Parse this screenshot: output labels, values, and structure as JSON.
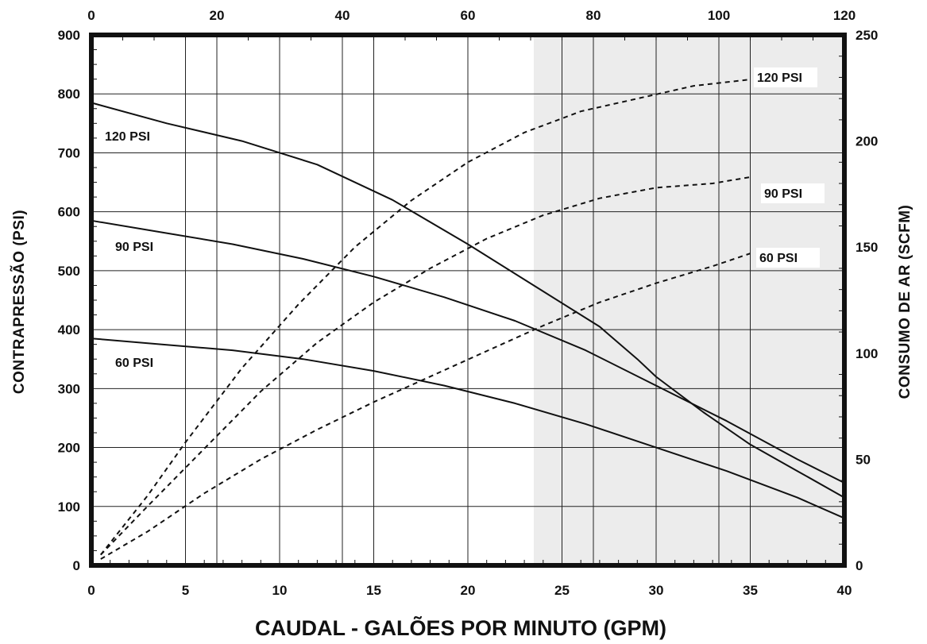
{
  "chart_data": {
    "type": "line",
    "xlabel": "CAUDAL - GALÕES POR MINUTO (GPM)",
    "ylabel": "CONTRAPRESSÃO  (PSI)",
    "y2label": "CONSUMO DE AR  (SCFM)",
    "x_bottom": {
      "lim": [
        0,
        40
      ],
      "ticks": [
        0,
        5,
        10,
        15,
        20,
        25,
        30,
        35,
        40
      ]
    },
    "x_top": {
      "lim": [
        0,
        120
      ],
      "ticks": [
        0,
        20,
        40,
        60,
        80,
        100,
        120
      ]
    },
    "y_left": {
      "lim": [
        0,
        900
      ],
      "ticks": [
        0,
        100,
        200,
        300,
        400,
        500,
        600,
        700,
        800,
        900
      ]
    },
    "y_right": {
      "lim": [
        0,
        250
      ],
      "ticks": [
        0,
        50,
        100,
        150,
        200,
        250
      ]
    },
    "grid": true,
    "shaded_region": {
      "x_from": 23.5,
      "x_to": 40,
      "color": "#ececec"
    },
    "series": [
      {
        "name": "120 PSI",
        "style": "solid",
        "axis": "left",
        "x": [
          0,
          4,
          8,
          12,
          16,
          20,
          24,
          27,
          29,
          30,
          32.5,
          35,
          37.5,
          40
        ],
        "y": [
          785,
          750,
          720,
          680,
          620,
          545,
          465,
          405,
          350,
          320,
          260,
          205,
          160,
          115
        ]
      },
      {
        "name": "90 PSI",
        "style": "solid",
        "axis": "left",
        "x": [
          0,
          3.75,
          7.5,
          11.25,
          15,
          18.75,
          22.5,
          26.25,
          30,
          33.75,
          37.5,
          40
        ],
        "y": [
          585,
          565,
          545,
          520,
          490,
          455,
          415,
          365,
          305,
          245,
          180,
          140
        ]
      },
      {
        "name": "60 PSI",
        "style": "solid",
        "axis": "left",
        "x": [
          0,
          3.75,
          7.5,
          11.25,
          15,
          18.75,
          22.5,
          26.25,
          30,
          33.75,
          37.5,
          40
        ],
        "y": [
          385,
          375,
          365,
          350,
          330,
          305,
          275,
          240,
          200,
          160,
          115,
          80
        ]
      },
      {
        "name": "120 PSI",
        "style": "dashed",
        "axis": "right",
        "x": [
          0.5,
          3,
          5,
          8,
          11,
          14,
          17,
          20,
          23,
          26,
          29,
          32,
          35
        ],
        "y": [
          5,
          33,
          58,
          93,
          123,
          150,
          172,
          190,
          204,
          214,
          220,
          226,
          229
        ]
      },
      {
        "name": "90 PSI",
        "style": "dashed",
        "axis": "right",
        "x": [
          0.5,
          3,
          6,
          9,
          12,
          15,
          18,
          21,
          24,
          27,
          30,
          33,
          35
        ],
        "y": [
          5,
          28,
          55,
          82,
          105,
          124,
          140,
          154,
          165,
          173,
          178,
          180,
          183
        ]
      },
      {
        "name": "60 PSI",
        "style": "dashed",
        "axis": "right",
        "x": [
          0.5,
          3,
          6,
          9,
          12,
          15,
          18,
          21,
          24,
          27,
          30,
          33,
          35
        ],
        "y": [
          3,
          16,
          34,
          50,
          64,
          77,
          89,
          101,
          113,
          124,
          133,
          141,
          147
        ]
      }
    ],
    "labels": [
      {
        "text": "120 PSI",
        "for": "120 PSI solid"
      },
      {
        "text": "90 PSI",
        "for": "90 PSI solid"
      },
      {
        "text": "60 PSI",
        "for": "60 PSI solid"
      },
      {
        "text": "120 PSI",
        "for": "120 PSI dashed"
      },
      {
        "text": "90 PSI",
        "for": "90 PSI dashed"
      },
      {
        "text": "60 PSI",
        "for": "60 PSI dashed"
      }
    ]
  }
}
